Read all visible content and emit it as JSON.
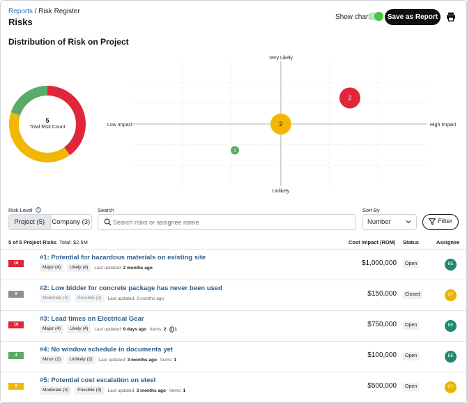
{
  "breadcrumb": {
    "root": "Reports",
    "sep": " / ",
    "current": "Risk Register"
  },
  "page_title": "Risks",
  "header": {
    "show_chart_label": "Show chart",
    "show_chart_on": true,
    "save_label": "Save as Report"
  },
  "chart": {
    "title": "Distribution of Risk on Project",
    "donut": {
      "total": "5",
      "label": "Total Risk Count",
      "segments": [
        {
          "name": "high",
          "value": 2,
          "color": "#e0263a"
        },
        {
          "name": "medium",
          "value": 2,
          "color": "#f2b705"
        },
        {
          "name": "low",
          "value": 1,
          "color": "#5aaa68"
        }
      ]
    },
    "matrix": {
      "y_top": "Very Likely",
      "y_bottom": "Unlikely",
      "x_left": "Low Impact",
      "x_right": "High Impact",
      "bubbles": [
        {
          "label": "2",
          "impact": 0.8,
          "likelihood": 0.75,
          "color": "#e0263a"
        },
        {
          "label": "2",
          "impact": 0.5,
          "likelihood": 0.5,
          "color": "#f2b705"
        },
        {
          "label": "1",
          "impact": 0.3,
          "likelihood": 0.25,
          "color": "#5aaa68"
        }
      ]
    }
  },
  "filters": {
    "risk_level_label": "Risk Level",
    "project_tab": "Project (5)",
    "company_tab": "Company (3)",
    "search_label": "Search",
    "search_placeholder": "Search risks or assignee name",
    "sort_label": "Sort By",
    "sort_value": "Number",
    "filter_label": "Filter"
  },
  "list": {
    "count": "5 of 5 Project Risks",
    "total": "Total: $2.5M",
    "col_cost": "Cost Impact (ROM)",
    "col_status": "Status",
    "col_assignee": "Assignee",
    "last_updated_label": "Last updated:",
    "items_label": "Items:",
    "rows": [
      {
        "score": "16",
        "score_color": "#e0263a",
        "title": "#1: Potential for hazardous materials on existing site",
        "impact": "Major (4)",
        "likelihood": "Likely (4)",
        "updated": "2 months ago",
        "items": "",
        "attachments": "",
        "muted": false,
        "cost": "$1,000,000",
        "status": "Open",
        "assignee": "BE",
        "assignee_color": "#1f8a6e"
      },
      {
        "score": "9",
        "score_color": "#8a8f94",
        "title": "#2: Low bidder for concrete package has never been used",
        "impact": "Moderate (3)",
        "likelihood": "Possible (3)",
        "updated": "3 months ago",
        "items": "",
        "attachments": "",
        "muted": true,
        "cost": "$150,000",
        "status": "Closed",
        "assignee": "CY",
        "assignee_color": "#e9b500"
      },
      {
        "score": "16",
        "score_color": "#e0263a",
        "title": "#3: Lead times on Electrical Gear",
        "impact": "Major (4)",
        "likelihood": "Likely (4)",
        "updated": "9 days ago",
        "items": "2",
        "attachments": "1",
        "muted": false,
        "cost": "$750,000",
        "status": "Open",
        "assignee": "BE",
        "assignee_color": "#1f8a6e"
      },
      {
        "score": "4",
        "score_color": "#5aaa68",
        "title": "#4: No window schedule in documents yet",
        "impact": "Minor (2)",
        "likelihood": "Unlikely (2)",
        "updated": "3 months ago",
        "items": "1",
        "attachments": "",
        "muted": false,
        "cost": "$100,000",
        "status": "Open",
        "assignee": "BE",
        "assignee_color": "#1f8a6e"
      },
      {
        "score": "9",
        "score_color": "#f2b705",
        "title": "#5: Potential cost escalation on steel",
        "impact": "Moderate (3)",
        "likelihood": "Possible (3)",
        "updated": "3 months ago",
        "items": "1",
        "attachments": "",
        "muted": false,
        "cost": "$500,000",
        "status": "Open",
        "assignee": "CY",
        "assignee_color": "#e9b500"
      }
    ]
  }
}
